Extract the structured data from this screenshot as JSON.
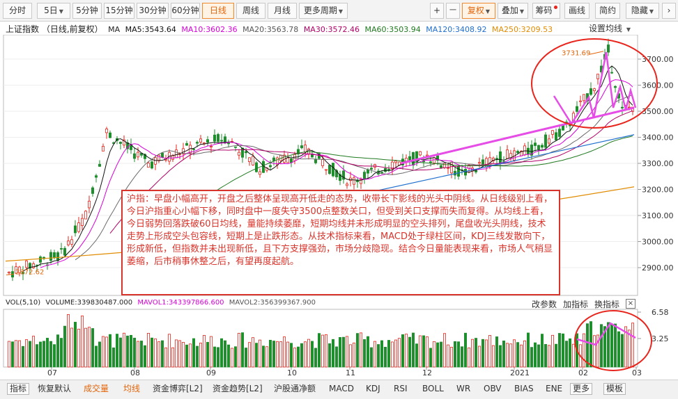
{
  "toolbar": {
    "periods": [
      "分时",
      "5日",
      "5分钟",
      "15分钟",
      "30分钟",
      "60分钟",
      "日线",
      "周线",
      "月线",
      "更多周期"
    ],
    "active_period": "日线",
    "zoom_in": "+",
    "zoom_out": "一",
    "adjust": "复权",
    "overlay": "叠加",
    "chips": "筹码",
    "draw": "画线",
    "simple": "简约",
    "hide": "隐藏"
  },
  "header": {
    "title": "上证指数 （日线,前复权）",
    "ma_label": "MA",
    "ma5": "MA5:3543.64",
    "ma10": "MA10:3602.36",
    "ma20": "MA20:3563.78",
    "ma30": "MA30:3572.46",
    "ma60": "MA60:3503.94",
    "ma120": "MA120:3408.92",
    "ma250": "MA250:3209.53",
    "settings": "设置均线"
  },
  "colors": {
    "up": "#e8251c",
    "down": "#1f8f2d",
    "ma5": "#111111",
    "ma10": "#d800d8",
    "ma20": "#6b6b6b",
    "ma30": "#b10066",
    "ma60": "#1f7a1f",
    "ma120": "#1e6fd0",
    "ma250": "#e08b00",
    "annotation": "#d9342b",
    "trendline": "#e64ce6"
  },
  "chart_data": {
    "type": "candlestick",
    "price_axis": [
      "3700.00",
      "3600.00",
      "3500.00",
      "3400.00",
      "3300.00",
      "3200.00",
      "3100.00",
      "3000.00",
      "2900.00"
    ],
    "high_label": "3731.69",
    "low_label": "2872.62",
    "x_labels": [
      "07",
      "08",
      "09",
      "10",
      "11",
      "12",
      "2021",
      "02",
      "03"
    ],
    "volume_axis": [
      "6.58",
      "3.25"
    ]
  },
  "annotation": {
    "text": "沪指：早盘小幅高开，开盘之后整体呈现高开低走的态势，收带长下影线的光头中阴线。从日线级别上看，今日沪指重心小幅下移，同时盘中一度失守3500点整数关口，但受到关口支撑而失而复得。从均线上看，今日弱势回落跌破60日均线，量能持续萎靡，短期均线并未形成明显的空头排列，尾盘收光头阴线，技术走势上形成空头包容线，短期上是止跌形态。从技术指标来看，MACD处于绿柱区间，KDJ三线发散向下，形成新低，但指数并未出现新低，且下方支撑强劲，市场分歧隐现。结合今日量能表现来看，市场人气稍显萎缩，后市稍事休整之后，有望再度起航。"
  },
  "volume": {
    "label": "VOL(5,10)",
    "volume": "VOLUME:339830487.000",
    "mavol1": "MAVOL1:343397866.600",
    "mavol2": "MAVOL2:356399367.900",
    "change_params": "改参数",
    "add_indicator": "加指标",
    "switch_indicator": "换指标",
    "close": "×"
  },
  "tabs": [
    "指标",
    "恢复默认",
    "成交量",
    "均线",
    "资金博弈[L2]",
    "资金趋势[L2]",
    "沪股通净额",
    "MACD",
    "KDJ",
    "RSI",
    "BOLL",
    "WR",
    "OBV",
    "BIAS",
    "ENE",
    "更多",
    "模板"
  ]
}
